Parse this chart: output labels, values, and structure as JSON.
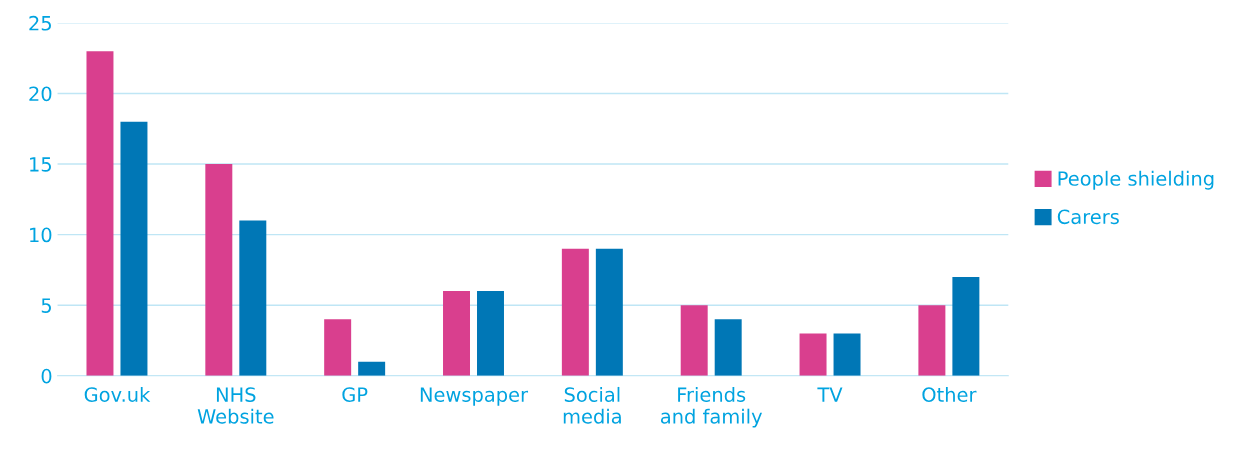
{
  "chart_data": {
    "type": "bar",
    "categories": [
      "Gov.uk",
      "NHS\nWebsite",
      "GP",
      "Newspaper",
      "Social\nmedia",
      "Friends\nand family",
      "TV",
      "Other"
    ],
    "series": [
      {
        "name": "People shielding",
        "color": "#d93f8e",
        "values": [
          23,
          15,
          4,
          6,
          9,
          5,
          3,
          5
        ]
      },
      {
        "name": "Carers",
        "color": "#0077b6",
        "values": [
          18,
          11,
          1,
          6,
          9,
          4,
          3,
          7
        ]
      }
    ],
    "ylim": [
      0,
      25
    ],
    "yticks": [
      0,
      5,
      10,
      15,
      20,
      25
    ],
    "grid": "y",
    "legend": "right"
  }
}
